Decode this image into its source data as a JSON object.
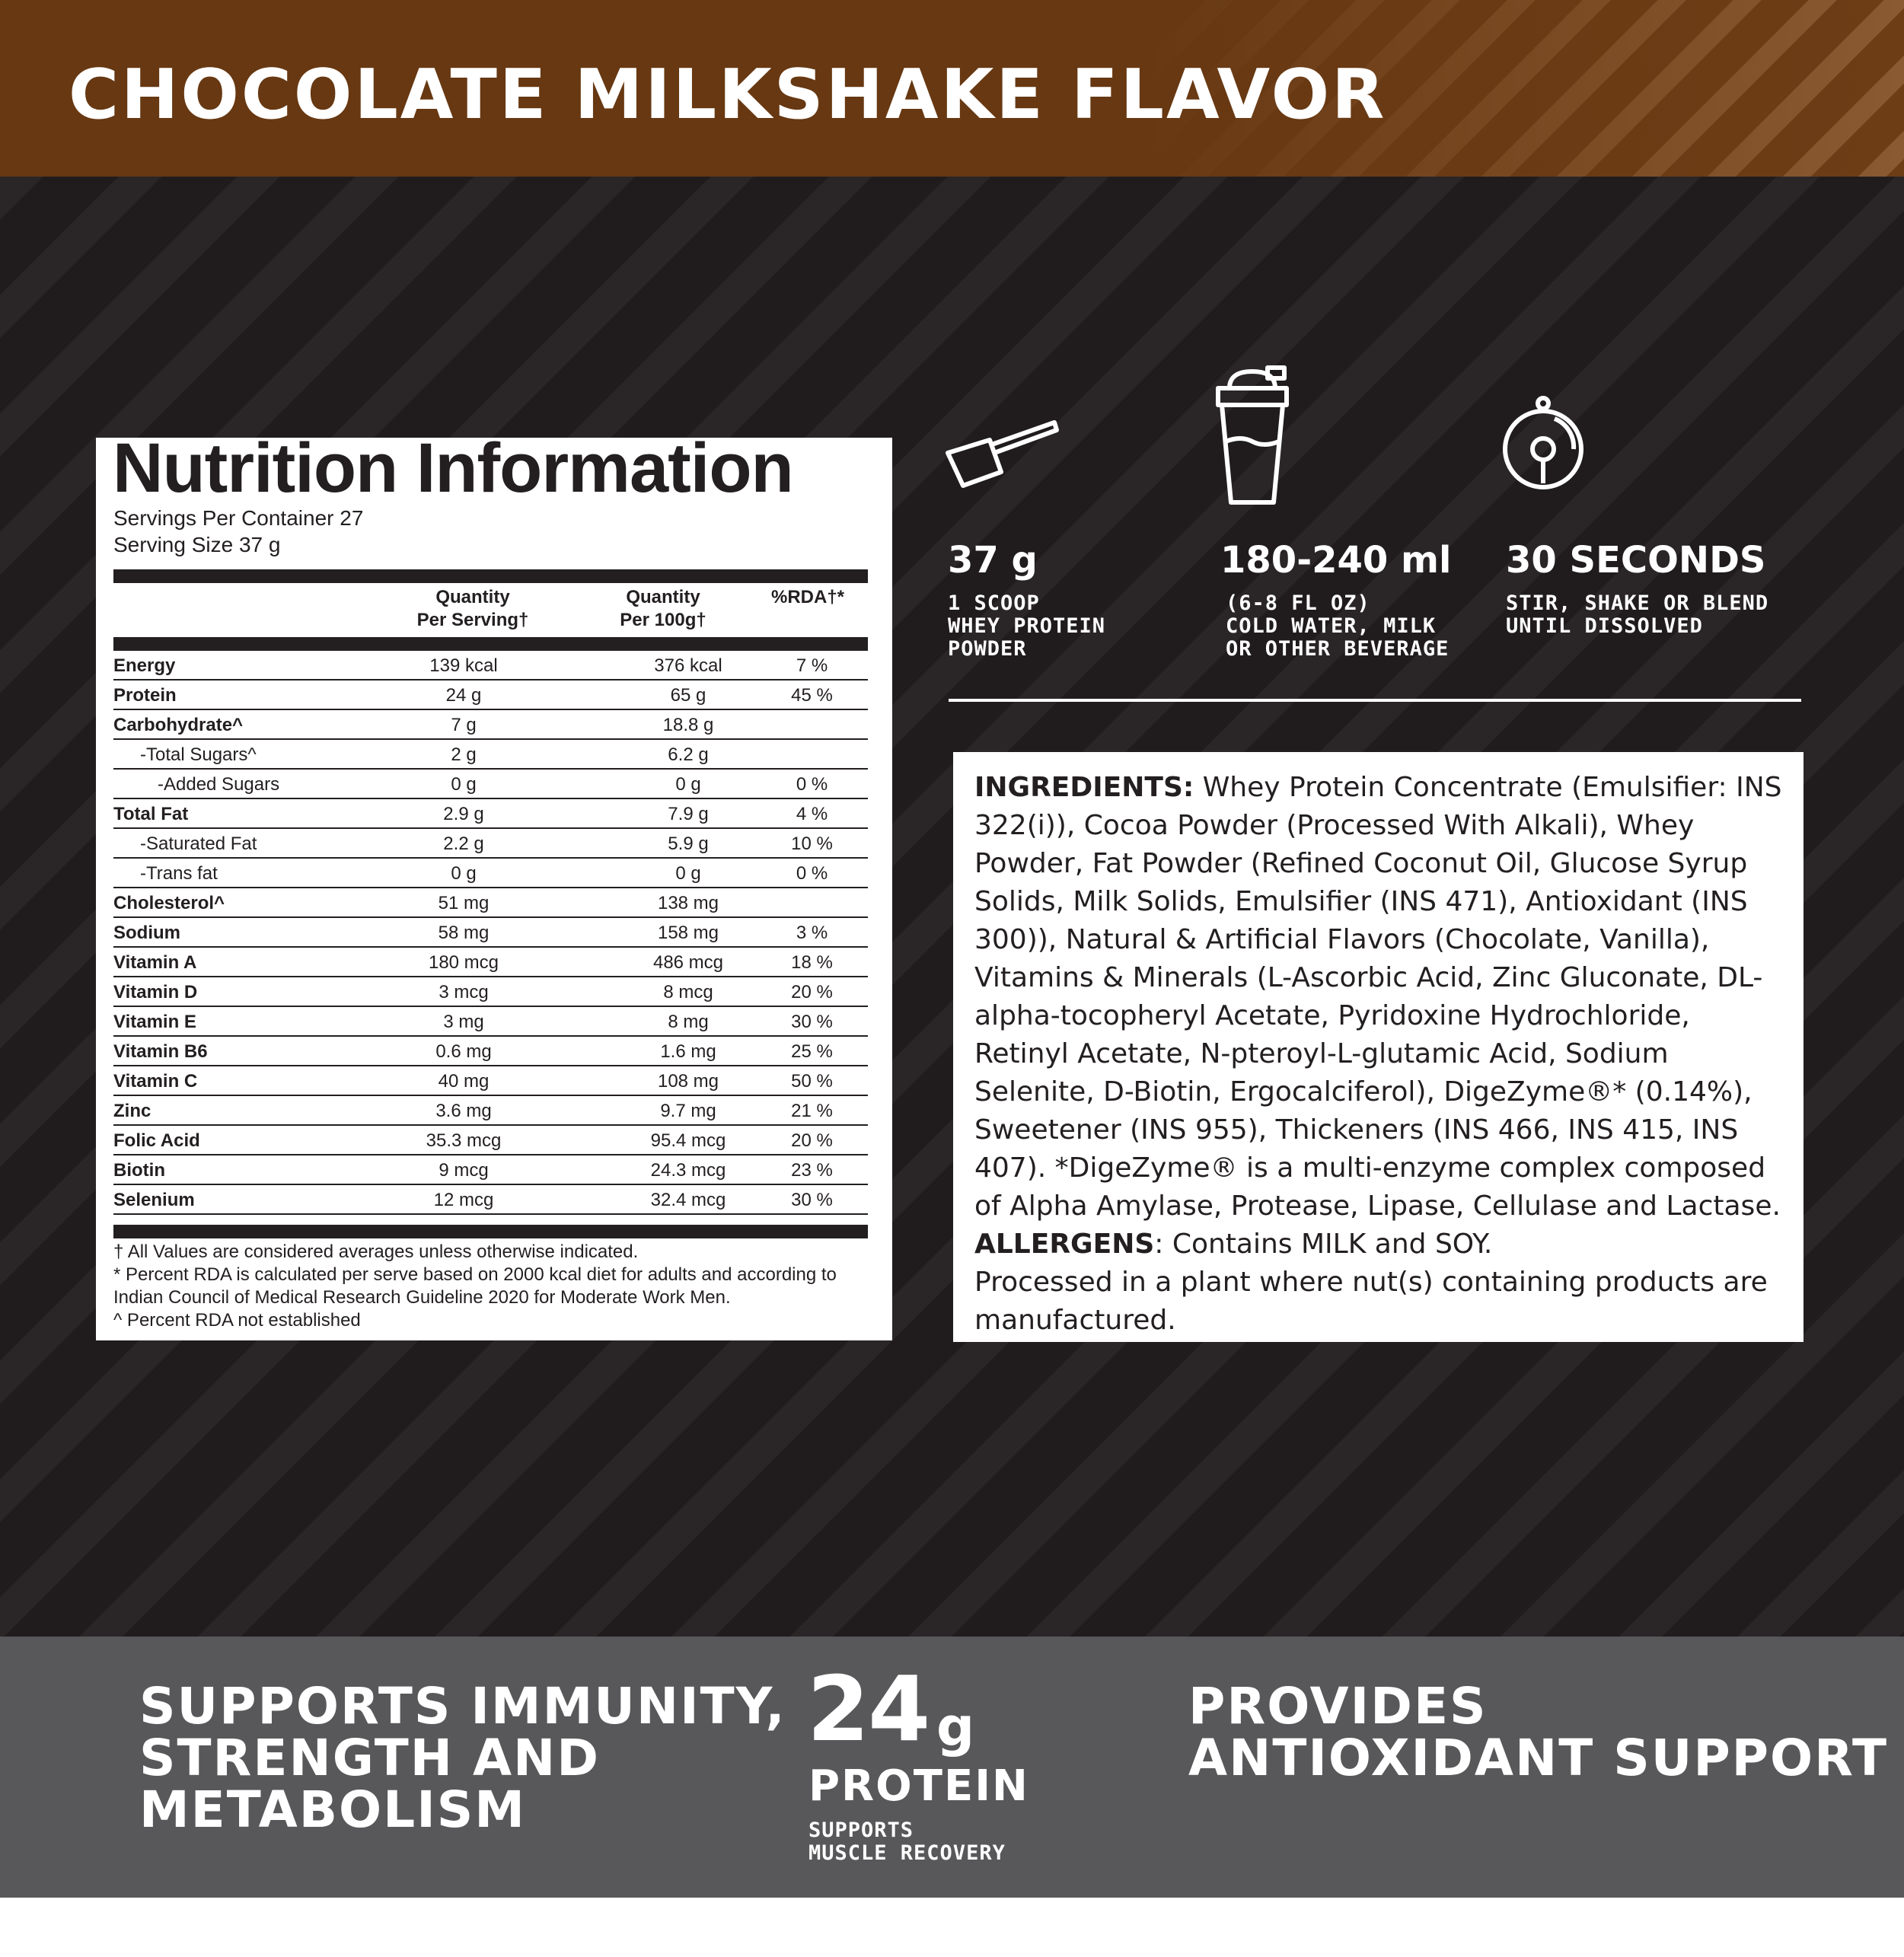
{
  "header": {
    "title": "CHOCOLATE MILKSHAKE FLAVOR"
  },
  "colors": {
    "banner": "#673812",
    "background": "#231f20",
    "footer": "#58585a"
  },
  "nutrition": {
    "title": "Nutrition Information",
    "servings_per_container": "Servings Per Container 27",
    "serving_size": "Serving Size 37 g",
    "columns": [
      "Quantity\nPer Serving†",
      "Quantity\nPer 100g†",
      "%RDA†*"
    ],
    "rows": [
      {
        "name": "Energy",
        "serving": "139 kcal",
        "per100": "376 kcal",
        "rda": "7 %",
        "bold": true,
        "indent": 0
      },
      {
        "name": "Protein",
        "serving": "24 g",
        "per100": "65 g",
        "rda": "45 %",
        "bold": true,
        "indent": 0
      },
      {
        "name": "Carbohydrate^",
        "serving": "7 g",
        "per100": "18.8 g",
        "rda": "",
        "bold": true,
        "indent": 0
      },
      {
        "name": "-Total Sugars^",
        "serving": "2 g",
        "per100": "6.2 g",
        "rda": "",
        "bold": false,
        "indent": 1
      },
      {
        "name": "-Added Sugars",
        "serving": "0 g",
        "per100": "0 g",
        "rda": "0 %",
        "bold": false,
        "indent": 2
      },
      {
        "name": "Total Fat",
        "serving": "2.9 g",
        "per100": "7.9 g",
        "rda": "4 %",
        "bold": true,
        "indent": 0
      },
      {
        "name": "-Saturated Fat",
        "serving": "2.2 g",
        "per100": "5.9 g",
        "rda": "10 %",
        "bold": false,
        "indent": 1
      },
      {
        "name": "-Trans fat",
        "serving": "0 g",
        "per100": "0 g",
        "rda": "0 %",
        "bold": false,
        "indent": 1
      },
      {
        "name": "Cholesterol^",
        "serving": "51 mg",
        "per100": "138 mg",
        "rda": "",
        "bold": true,
        "indent": 0
      },
      {
        "name": "Sodium",
        "serving": "58 mg",
        "per100": "158 mg",
        "rda": "3 %",
        "bold": true,
        "indent": 0
      },
      {
        "name": "Vitamin A",
        "serving": "180 mcg",
        "per100": "486 mcg",
        "rda": "18 %",
        "bold": true,
        "indent": 0
      },
      {
        "name": "Vitamin D",
        "serving": "3 mcg",
        "per100": "8 mcg",
        "rda": "20 %",
        "bold": true,
        "indent": 0
      },
      {
        "name": "Vitamin E",
        "serving": "3 mg",
        "per100": "8 mg",
        "rda": "30 %",
        "bold": true,
        "indent": 0
      },
      {
        "name": "Vitamin B6",
        "serving": "0.6 mg",
        "per100": "1.6 mg",
        "rda": "25 %",
        "bold": true,
        "indent": 0
      },
      {
        "name": "Vitamin C",
        "serving": "40 mg",
        "per100": "108 mg",
        "rda": "50 %",
        "bold": true,
        "indent": 0
      },
      {
        "name": "Zinc",
        "serving": "3.6 mg",
        "per100": "9.7 mg",
        "rda": "21 %",
        "bold": true,
        "indent": 0
      },
      {
        "name": "Folic Acid",
        "serving": "35.3 mcg",
        "per100": "95.4 mcg",
        "rda": "20 %",
        "bold": true,
        "indent": 0
      },
      {
        "name": "Biotin",
        "serving": "9 mcg",
        "per100": "24.3 mcg",
        "rda": "23 %",
        "bold": true,
        "indent": 0
      },
      {
        "name": "Selenium",
        "serving": "12 mcg",
        "per100": "32.4 mcg",
        "rda": "30 %",
        "bold": true,
        "indent": 0
      }
    ],
    "footnotes": [
      "† All Values are considered averages unless otherwise indicated.",
      "* Percent RDA is calculated per serve based on 2000 kcal diet for adults and according to Indian Council of Medical Research Guideline 2020 for Moderate Work Men.",
      "^ Percent RDA not established"
    ]
  },
  "directions": [
    {
      "icon": "scoop-icon",
      "value": "37 g",
      "text": "1 SCOOP\nWHEY PROTEIN\nPOWDER"
    },
    {
      "icon": "shaker-icon",
      "value": "180-240 ml",
      "text": "(6-8 FL OZ)\nCOLD WATER, MILK\nOR OTHER BEVERAGE"
    },
    {
      "icon": "timer-icon",
      "value": "30 SECONDS",
      "text": "STIR, SHAKE OR BLEND\nUNTIL DISSOLVED"
    }
  ],
  "ingredients": {
    "label": "INGREDIENTS:",
    "text": " Whey Protein Concentrate (Emulsifier: INS 322(i)), Cocoa Powder (Processed With Alkali), Whey Powder, Fat Powder (Refined Coconut Oil, Glucose Syrup Solids, Milk Solids, Emulsifier (INS 471), Antioxidant (INS 300)), Natural & Artificial Flavors (Chocolate, Vanilla), Vitamins & Minerals (L-Ascorbic Acid, Zinc Gluconate, DL-alpha-tocopheryl Acetate, Pyridoxine Hydrochloride, Retinyl Acetate, N-pteroyl-L-glutamic Acid, Sodium Selenite, D-Biotin, Ergocalciferol), DigeZyme®* (0.14%), Sweetener (INS 955), Thickeners (INS 466, INS 415, INS 407). *DigeZyme® is a multi-enzyme complex composed of Alpha Amylase, Protease, Lipase, Cellulase and Lactase.",
    "allergens_label": "ALLERGENS",
    "allergens_text": ": Contains MILK and SOY.",
    "processed": "Processed in a plant where nut(s) containing products are manufactured."
  },
  "footer": {
    "left": "SUPPORTS IMMUNITY,\nSTRENGTH AND\nMETABOLISM",
    "protein_value": "24",
    "protein_unit": "g",
    "protein_label": "PROTEIN",
    "protein_sub": "SUPPORTS\nMUSCLE RECOVERY",
    "right": "PROVIDES\nANTIOXIDANT SUPPORT"
  }
}
